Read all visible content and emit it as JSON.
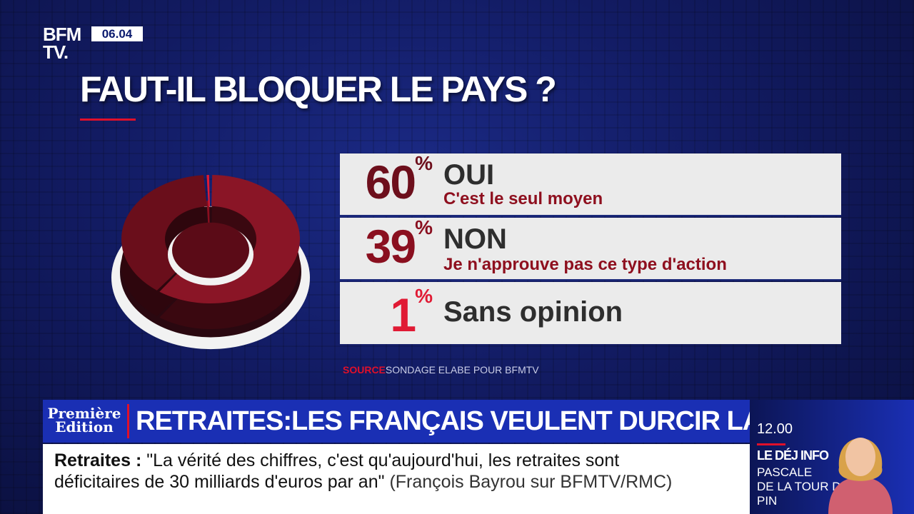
{
  "channel": {
    "logo_line1": "BFM",
    "logo_line2": "TV.",
    "clock": "06.04"
  },
  "title": "FAUT-IL BLOQUER LE PAYS ?",
  "chart_data": {
    "type": "pie",
    "title": "FAUT-IL BLOQUER LE PAYS ?",
    "categories": [
      "OUI",
      "NON",
      "Sans opinion"
    ],
    "values": [
      60,
      39,
      1
    ],
    "percent_labels": [
      "60",
      "39",
      "1"
    ],
    "percent_symbol": "%",
    "sublabels": [
      "C'est le seul moyen",
      "Je n'approuve pas ce type d'action",
      ""
    ],
    "colors": [
      "#7a1020",
      "#8e1628",
      "#e01a34"
    ],
    "source_label": "SOURCE",
    "source_text": "SONDAGE ELABE POUR BFMTV"
  },
  "ticker": {
    "show_logo": "Première Edition",
    "headline": "RETRAITES:LES FRANÇAIS VEULENT DURCIR LA LUTTE",
    "quote_topic": "Retraites :",
    "quote_line1": "\"La vérité des chiffres, c'est qu'aujourd'hui, les retraites sont",
    "quote_line2": "déficitaires de 30 milliards d'euros par an\"",
    "quote_attribution": "(François Bayrou sur BFMTV/RMC)"
  },
  "sidebar": {
    "time": "12.00",
    "show": "LE DÉJ INFO",
    "host_line1": "PASCALE",
    "host_line2": "DE LA TOUR DU PIN"
  },
  "colors": {
    "background": "#121b62",
    "accent_red": "#e0102a",
    "ticker_blue": "#1a2fb4"
  }
}
